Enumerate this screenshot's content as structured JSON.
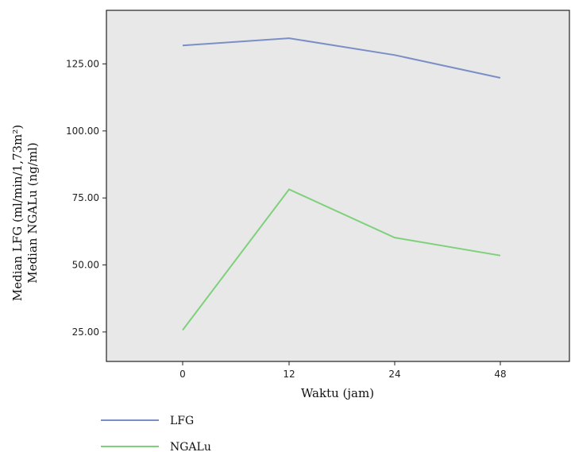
{
  "chart_data": {
    "type": "line",
    "categories": [
      "0",
      "12",
      "24",
      "48"
    ],
    "series": [
      {
        "name": "LFG",
        "values": [
          131.9,
          134.6,
          128.3,
          119.8
        ],
        "color": "#7b8fc6"
      },
      {
        "name": "NGALu",
        "values": [
          25.7,
          78.2,
          60.2,
          53.5
        ],
        "color": "#7fd07b"
      }
    ],
    "y_ticks": [
      "25.00",
      "50.00",
      "75.00",
      "100.00",
      "125.00"
    ],
    "ylim": [
      14,
      145
    ],
    "xlabel": "Waktu (jam)",
    "ylabel_line1": "Median LFG (ml/min/1,73m²)",
    "ylabel_line2": "Median NGALu (ng/ml)",
    "plot_background": "#e8e8e8",
    "legend_position": "bottom-left"
  }
}
